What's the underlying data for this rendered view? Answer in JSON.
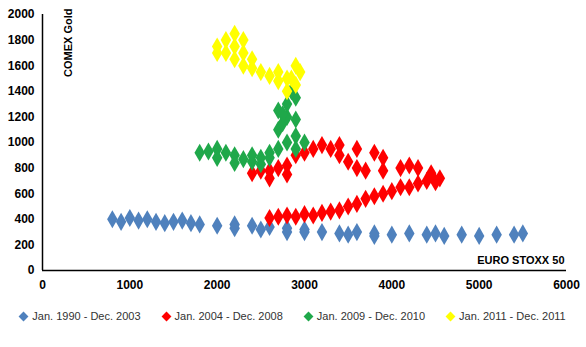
{
  "chart_data": {
    "type": "scatter",
    "x_label": "EURO STOXX 50",
    "y_label": "COMEX Gold",
    "xlim": [
      0,
      6000
    ],
    "xticks": [
      0,
      1000,
      2000,
      3000,
      4000,
      5000,
      6000
    ],
    "ylim": [
      0,
      2000
    ],
    "yticks": [
      0,
      200,
      400,
      600,
      800,
      1000,
      1200,
      1400,
      1600,
      1800,
      2000
    ],
    "grid": false,
    "legend": "bottom",
    "marker": "diamond",
    "series": [
      {
        "name": "Jan. 1990 - Dec. 2003",
        "color": "#4f81bd",
        "x": [
          800,
          900,
          1000,
          1100,
          1200,
          1300,
          1400,
          1500,
          1600,
          1700,
          1800,
          2000,
          2200,
          2400,
          2600,
          2800,
          3000,
          3200,
          3400,
          3600,
          3800,
          4000,
          4200,
          4400,
          4600,
          4800,
          5000,
          5200,
          5400,
          5500,
          3500,
          3000,
          2500,
          2200,
          4500,
          3800,
          2800
        ],
        "values": [
          400,
          380,
          410,
          390,
          400,
          380,
          370,
          380,
          390,
          370,
          360,
          350,
          360,
          350,
          340,
          330,
          320,
          300,
          290,
          300,
          290,
          280,
          290,
          280,
          270,
          280,
          270,
          280,
          280,
          290,
          280,
          300,
          320,
          330,
          290,
          270,
          300
        ]
      },
      {
        "name": "Jan. 2004 - Dec. 2008",
        "color": "#ff0000",
        "x": [
          2600,
          2700,
          2800,
          2900,
          3000,
          3100,
          3200,
          3300,
          3400,
          3500,
          3600,
          3700,
          3800,
          3900,
          4000,
          4100,
          4200,
          4300,
          4400,
          4500,
          4550,
          4450,
          4300,
          4200,
          4100,
          3900,
          3700,
          3600,
          3500,
          3400,
          3300,
          3400,
          3600,
          3800,
          3900,
          3200,
          3100,
          3000,
          2900,
          2800,
          2700,
          2600,
          2500,
          2400,
          2600,
          2800
        ],
        "values": [
          410,
          420,
          430,
          420,
          440,
          430,
          450,
          460,
          470,
          500,
          520,
          560,
          580,
          600,
          620,
          650,
          650,
          680,
          700,
          690,
          720,
          760,
          800,
          820,
          800,
          780,
          780,
          800,
          850,
          900,
          950,
          980,
          950,
          920,
          880,
          980,
          950,
          920,
          900,
          820,
          800,
          780,
          780,
          760,
          720,
          750
        ]
      },
      {
        "name": "Jan. 2009 - Dec. 2010",
        "color": "#1fa84a",
        "x": [
          2500,
          2400,
          2300,
          2200,
          2100,
          2000,
          1900,
          1800,
          2000,
          2200,
          2400,
          2600,
          2700,
          2800,
          2900,
          2900,
          2700,
          2750,
          2800,
          2900,
          2700,
          2800,
          2900,
          2850,
          2750,
          2600,
          2500,
          3000
        ],
        "values": [
          880,
          850,
          870,
          900,
          920,
          950,
          930,
          920,
          880,
          840,
          900,
          920,
          950,
          1000,
          1050,
          950,
          1100,
          1150,
          1200,
          1180,
          1250,
          1300,
          1350,
          1400,
          1220,
          880,
          830,
          1000
        ]
      },
      {
        "name": "Jan. 2011 - Dec. 2011",
        "color": "#ffff00",
        "x": [
          2800,
          2900,
          2850,
          2700,
          2600,
          2500,
          2400,
          2300,
          2200,
          2100,
          2000,
          2100,
          2200,
          2300,
          2200,
          2000,
          2300,
          2400,
          2700,
          2900,
          2950,
          2800
        ],
        "values": [
          1400,
          1450,
          1500,
          1480,
          1520,
          1550,
          1580,
          1600,
          1650,
          1700,
          1750,
          1800,
          1850,
          1800,
          1750,
          1700,
          1700,
          1650,
          1550,
          1600,
          1550,
          1500
        ]
      }
    ]
  }
}
